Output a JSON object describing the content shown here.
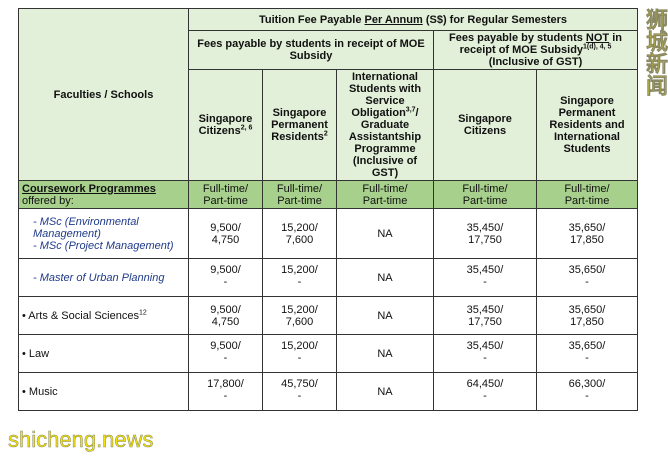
{
  "header": {
    "faculties": "Faculties / Schools",
    "title_pre": "Tuition Fee Payable ",
    "title_u": "Per Annum",
    "title_post": " (S$) for Regular Semesters",
    "moe": "Fees payable by students in receipt of MOE Subsidy",
    "nonmoe_pre": "Fees payable by students ",
    "nonmoe_u": "NOT",
    "nonmoe_post": " in receipt of MOE Subsidy",
    "nonmoe_sup": "1(d), 4, 5",
    "nonmoe_gst": "(Inclusive of GST)",
    "col1": "Singapore Citizens",
    "col1_sup": "2, 6",
    "col2": "Singapore Permanent Residents",
    "col2_sup": "2",
    "col3a": "International Students with Service Obligation",
    "col3_sup": "3,7",
    "col3b": "/ Graduate Assistantship Programme (Inclusive of GST)",
    "col4": "Singapore Citizens",
    "col5": "Singapore Permanent Residents and International Students"
  },
  "section": {
    "title": "Coursework Programmes",
    "sub": "offered by:",
    "mode_top": "Full-time/",
    "mode_bottom": "Part-time"
  },
  "rows": [
    {
      "label": "- MSc (Environmental Management)",
      "label2": "- MSc (Project Management)",
      "vals": [
        [
          "9,500/",
          "4,750"
        ],
        [
          "15,200/",
          "7,600"
        ],
        [
          "NA",
          ""
        ],
        [
          "35,450/",
          "17,750"
        ],
        [
          "35,650/",
          "17,850"
        ]
      ]
    },
    {
      "label": "- Master of Urban Planning",
      "vals": [
        [
          "9,500/",
          "-"
        ],
        [
          "15,200/",
          "-"
        ],
        [
          "NA",
          ""
        ],
        [
          "35,450/",
          "-"
        ],
        [
          "35,650/",
          "-"
        ]
      ]
    },
    {
      "label": "• Arts & Social Sciences",
      "sup": "12",
      "vals": [
        [
          "9,500/",
          "4,750"
        ],
        [
          "15,200/",
          "7,600"
        ],
        [
          "NA",
          ""
        ],
        [
          "35,450/",
          "17,750"
        ],
        [
          "35,650/",
          "17,850"
        ]
      ]
    },
    {
      "label": "• Law",
      "vals": [
        [
          "9,500/",
          "-"
        ],
        [
          "15,200/",
          "-"
        ],
        [
          "NA",
          ""
        ],
        [
          "35,450/",
          "-"
        ],
        [
          "35,650/",
          "-"
        ]
      ]
    },
    {
      "label": "• Music",
      "vals": [
        [
          "17,800/",
          "-"
        ],
        [
          "45,750/",
          "-"
        ],
        [
          "NA",
          ""
        ],
        [
          "64,450/",
          "-"
        ],
        [
          "66,300/",
          "-"
        ]
      ]
    }
  ],
  "watermarks": {
    "top": "狮城新闻",
    "bottom": "shicheng.news"
  }
}
